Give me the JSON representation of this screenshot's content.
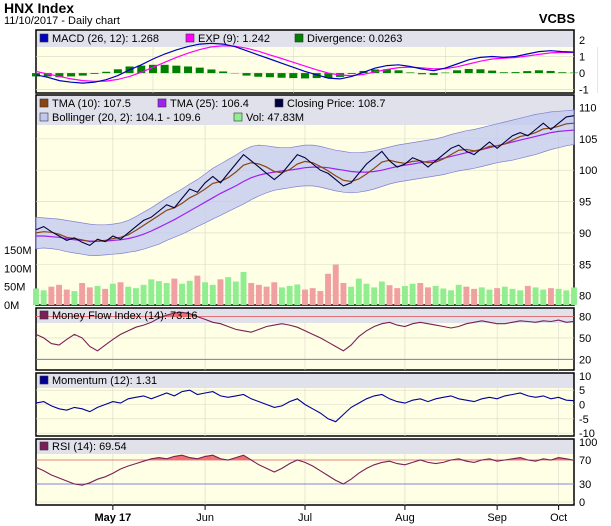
{
  "header": {
    "title": "HNX Index",
    "subtitle": "11/10/2017 - Daily chart",
    "brand": "VCBS"
  },
  "colors": {
    "background_panel": "#ffffe6",
    "label_band": "#c8c8f0",
    "tma10": "#8b4513",
    "tma25": "#a020f0",
    "closing": "#000040",
    "bollinger_fill": "#c0c8f0",
    "bollinger_line": "#8080d0",
    "volume_up": "#90ee90",
    "volume_down": "#f0a0a0",
    "macd": "#0000c0",
    "exp": "#ff00ff",
    "divergence": "#008000",
    "mfi": "#7a1f5a",
    "momentum": "#000099",
    "rsi": "#7a1f5a",
    "overbought_fill": "#f07070",
    "ref_red": "#e06060",
    "ref_blue": "#6060e0"
  },
  "chart_data": [
    {
      "type": "line",
      "panel": "macd",
      "legend": [
        {
          "text": "MACD (26, 12): 1.268",
          "color": "#0000c0"
        },
        {
          "text": "EXP (9): 1.242",
          "color": "#ff00ff"
        },
        {
          "text": "Divergence: 0.0263",
          "color": "#008000"
        }
      ],
      "yticks": [
        2,
        1,
        0,
        -1
      ],
      "ylim": [
        -1.2,
        2.6
      ],
      "series": [
        {
          "name": "MACD (26, 12)",
          "values": [
            -0.1,
            -0.25,
            -0.45,
            -0.55,
            -0.6,
            -0.55,
            -0.4,
            -0.15,
            0.2,
            0.5,
            0.85,
            1.15,
            1.4,
            1.6,
            1.75,
            1.8,
            1.75,
            1.6,
            1.35,
            1.1,
            0.85,
            0.6,
            0.35,
            0.1,
            -0.1,
            -0.3,
            -0.35,
            -0.2,
            0.05,
            0.3,
            0.45,
            0.5,
            0.4,
            0.25,
            0.15,
            0.3,
            0.55,
            0.8,
            0.95,
            1.0,
            0.95,
            1.0,
            1.15,
            1.3,
            1.35,
            1.3,
            1.27
          ]
        },
        {
          "name": "EXP (9)",
          "values": [
            0.1,
            -0.05,
            -0.2,
            -0.35,
            -0.45,
            -0.5,
            -0.48,
            -0.38,
            -0.2,
            0.05,
            0.35,
            0.65,
            0.95,
            1.2,
            1.42,
            1.58,
            1.65,
            1.62,
            1.5,
            1.32,
            1.1,
            0.88,
            0.65,
            0.42,
            0.2,
            0.0,
            -0.12,
            -0.15,
            -0.08,
            0.08,
            0.22,
            0.33,
            0.36,
            0.32,
            0.26,
            0.27,
            0.38,
            0.55,
            0.72,
            0.85,
            0.9,
            0.94,
            1.03,
            1.13,
            1.22,
            1.25,
            1.24
          ]
        },
        {
          "name": "Divergence",
          "values": [
            -0.2,
            -0.2,
            -0.25,
            -0.2,
            -0.15,
            -0.05,
            0.08,
            0.23,
            0.4,
            0.45,
            0.5,
            0.5,
            0.45,
            0.4,
            0.33,
            0.22,
            0.1,
            -0.02,
            -0.15,
            -0.22,
            -0.25,
            -0.28,
            -0.3,
            -0.32,
            -0.3,
            -0.3,
            -0.23,
            -0.05,
            0.13,
            0.22,
            0.23,
            0.17,
            0.04,
            -0.07,
            -0.11,
            0.03,
            0.17,
            0.25,
            0.23,
            0.15,
            0.05,
            0.06,
            0.12,
            0.17,
            0.13,
            0.05,
            0.03
          ]
        }
      ]
    },
    {
      "type": "line",
      "panel": "price",
      "legend": [
        {
          "text": "TMA (10): 107.5",
          "color": "#8b4513"
        },
        {
          "text": "TMA (25): 106.4",
          "color": "#a020f0"
        },
        {
          "text": "Closing Price: 108.7",
          "color": "#000040"
        },
        {
          "text": "Bollinger (20, 2): 104.1 - 109.6",
          "color": "#c0c8f0"
        },
        {
          "text": "Vol: 47.83M",
          "color": "#90ee90"
        }
      ],
      "yticks": [
        110,
        105,
        100,
        95,
        90,
        85,
        80
      ],
      "ylim": [
        78.5,
        112
      ],
      "volume_ticks": [
        "150M",
        "100M",
        "50M",
        "0M"
      ],
      "volume_max": 150,
      "series": [
        {
          "name": "Closing Price",
          "values": [
            90.5,
            91.0,
            90.2,
            89.5,
            88.8,
            89.2,
            88.5,
            88.0,
            89.0,
            88.6,
            89.5,
            89.0,
            90.0,
            91.0,
            92.0,
            92.5,
            93.5,
            94.5,
            94.0,
            95.5,
            97.0,
            96.5,
            98.0,
            99.0,
            98.0,
            99.5,
            101.0,
            102.5,
            101.5,
            100.5,
            99.5,
            98.5,
            99.5,
            101.0,
            102.5,
            102.0,
            101.0,
            100.0,
            99.5,
            98.5,
            97.5,
            98.0,
            99.5,
            101.0,
            102.0,
            103.0,
            101.5,
            100.5,
            101.0,
            102.0,
            101.5,
            100.5,
            101.5,
            102.5,
            103.5,
            104.0,
            103.0,
            102.5,
            103.5,
            104.5,
            103.5,
            104.5,
            105.5,
            106.0,
            105.5,
            106.5,
            107.5,
            106.5,
            107.5,
            108.5,
            108.7
          ]
        },
        {
          "name": "TMA (10)",
          "values": [
            90.0,
            90.2,
            90.1,
            89.8,
            89.3,
            89.1,
            88.9,
            88.6,
            88.7,
            88.8,
            89.1,
            89.3,
            89.7,
            90.4,
            91.2,
            92.0,
            92.8,
            93.6,
            94.0,
            94.7,
            95.6,
            96.2,
            97.0,
            97.9,
            98.2,
            98.8,
            99.7,
            100.8,
            101.2,
            101.0,
            100.5,
            99.8,
            99.6,
            100.1,
            101.0,
            101.4,
            101.2,
            100.6,
            99.9,
            99.1,
            98.4,
            98.2,
            98.6,
            99.4,
            100.3,
            101.3,
            101.6,
            101.3,
            101.1,
            101.4,
            101.5,
            101.2,
            101.3,
            101.8,
            102.5,
            103.2,
            103.3,
            103.1,
            103.3,
            103.8,
            103.9,
            104.2,
            104.8,
            105.4,
            105.6,
            106.0,
            106.6,
            106.7,
            107.0,
            107.4,
            107.5
          ]
        },
        {
          "name": "TMA (25)",
          "values": [
            89.5,
            89.5,
            89.4,
            89.3,
            89.1,
            88.9,
            88.8,
            88.7,
            88.7,
            88.7,
            88.8,
            88.9,
            89.1,
            89.4,
            89.8,
            90.3,
            90.9,
            91.5,
            92.1,
            92.8,
            93.5,
            94.2,
            94.9,
            95.6,
            96.3,
            96.9,
            97.5,
            98.2,
            98.8,
            99.2,
            99.5,
            99.7,
            99.9,
            100.0,
            100.2,
            100.4,
            100.5,
            100.5,
            100.4,
            100.2,
            100.0,
            99.8,
            99.7,
            99.7,
            99.8,
            100.0,
            100.3,
            100.6,
            100.8,
            101.0,
            101.2,
            101.4,
            101.6,
            101.9,
            102.2,
            102.5,
            102.8,
            103.0,
            103.3,
            103.6,
            103.9,
            104.2,
            104.5,
            104.8,
            105.1,
            105.4,
            105.7,
            106.0,
            106.2,
            106.3,
            106.4
          ]
        },
        {
          "name": "Bollinger upper",
          "values": [
            92.5,
            92.4,
            92.3,
            92.2,
            92.0,
            91.8,
            91.6,
            91.4,
            91.3,
            91.3,
            91.4,
            91.6,
            92.0,
            92.6,
            93.3,
            94.0,
            94.8,
            95.6,
            96.3,
            97.0,
            97.8,
            98.5,
            99.4,
            100.3,
            101.0,
            101.7,
            102.4,
            103.2,
            103.8,
            104.0,
            103.9,
            103.7,
            103.6,
            103.6,
            103.8,
            104.0,
            104.0,
            103.8,
            103.5,
            103.2,
            103.0,
            102.8,
            102.8,
            102.9,
            103.1,
            103.4,
            103.7,
            104.0,
            104.2,
            104.4,
            104.6,
            104.8,
            105.0,
            105.3,
            105.7,
            106.0,
            106.3,
            106.5,
            106.8,
            107.1,
            107.4,
            107.7,
            108.0,
            108.3,
            108.6,
            108.9,
            109.1,
            109.3,
            109.4,
            109.5,
            109.6
          ]
        },
        {
          "name": "Bollinger lower",
          "values": [
            87.5,
            87.6,
            87.5,
            87.3,
            87.0,
            86.8,
            86.6,
            86.4,
            86.4,
            86.5,
            86.6,
            86.7,
            86.9,
            87.1,
            87.4,
            87.8,
            88.2,
            88.8,
            89.3,
            89.8,
            90.4,
            91.0,
            91.6,
            92.2,
            92.8,
            93.4,
            94.0,
            94.6,
            95.3,
            95.9,
            96.4,
            96.8,
            97.0,
            97.2,
            97.4,
            97.5,
            97.5,
            97.3,
            97.0,
            96.7,
            96.5,
            96.4,
            96.5,
            96.7,
            97.0,
            97.4,
            97.8,
            98.1,
            98.3,
            98.5,
            98.7,
            98.9,
            99.1,
            99.3,
            99.6,
            99.9,
            100.1,
            100.3,
            100.6,
            100.9,
            101.2,
            101.4,
            101.6,
            101.9,
            102.2,
            102.5,
            102.9,
            103.3,
            103.6,
            103.9,
            104.1
          ]
        },
        {
          "name": "Vol",
          "values": [
            45,
            40,
            50,
            55,
            42,
            38,
            60,
            48,
            52,
            44,
            58,
            62,
            50,
            46,
            55,
            70,
            65,
            60,
            72,
            58,
            66,
            80,
            62,
            55,
            70,
            76,
            64,
            90,
            60,
            55,
            50,
            62,
            48,
            52,
            56,
            42,
            46,
            38,
            85,
            110,
            60,
            50,
            72,
            58,
            48,
            64,
            54,
            46,
            52,
            58,
            60,
            48,
            52,
            45,
            40,
            55,
            50,
            44,
            48,
            42,
            46,
            50,
            44,
            40,
            52,
            48,
            42,
            46,
            44,
            40,
            47.83
          ]
        },
        {
          "name": "Vol up-day flags",
          "values": [
            1,
            1,
            0,
            0,
            0,
            1,
            0,
            0,
            1,
            0,
            1,
            0,
            1,
            1,
            1,
            1,
            1,
            1,
            0,
            1,
            1,
            0,
            1,
            1,
            0,
            1,
            1,
            1,
            0,
            0,
            0,
            0,
            1,
            1,
            1,
            0,
            0,
            0,
            0,
            0,
            0,
            1,
            1,
            1,
            1,
            1,
            0,
            0,
            1,
            1,
            0,
            0,
            1,
            1,
            1,
            1,
            0,
            0,
            1,
            1,
            0,
            1,
            1,
            1,
            0,
            1,
            1,
            0,
            1,
            1,
            1
          ]
        }
      ]
    },
    {
      "type": "line",
      "panel": "mfi",
      "legend": [
        {
          "text": "Money Flow Index (14): 73.16",
          "color": "#7a1f5a"
        }
      ],
      "yticks": [
        80,
        50,
        20
      ],
      "ylim": [
        5,
        92
      ],
      "ref_lines": [
        80,
        20
      ],
      "series": [
        {
          "name": "Money Flow Index (14)",
          "values": [
            55,
            50,
            42,
            40,
            48,
            55,
            50,
            38,
            32,
            40,
            48,
            55,
            60,
            65,
            68,
            72,
            78,
            82,
            85,
            86,
            84,
            80,
            76,
            72,
            70,
            66,
            62,
            60,
            58,
            62,
            66,
            68,
            70,
            68,
            65,
            60,
            55,
            50,
            44,
            38,
            32,
            40,
            52,
            60,
            66,
            70,
            72,
            68,
            66,
            70,
            72,
            70,
            68,
            66,
            64,
            66,
            70,
            72,
            74,
            72,
            70,
            70,
            72,
            74,
            73,
            72,
            74,
            73,
            75,
            72,
            73.16
          ]
        }
      ]
    },
    {
      "type": "line",
      "panel": "momentum",
      "legend": [
        {
          "text": "Momentum (12): 1.31",
          "color": "#000099"
        }
      ],
      "yticks": [
        10,
        5,
        0,
        -5,
        -10
      ],
      "ylim": [
        -11,
        11
      ],
      "series": [
        {
          "name": "Momentum (12)",
          "values": [
            0.5,
            1.0,
            -0.5,
            -1.5,
            -2.0,
            -1.0,
            -1.5,
            -2.5,
            -1.0,
            0.0,
            1.0,
            0.5,
            2.0,
            2.5,
            3.0,
            2.0,
            3.0,
            4.0,
            3.0,
            4.5,
            5.0,
            3.5,
            4.0,
            4.5,
            3.0,
            2.5,
            3.0,
            3.5,
            2.0,
            1.0,
            0.0,
            -1.0,
            -0.5,
            1.0,
            2.0,
            0.0,
            -1.5,
            -3.0,
            -5.0,
            -6.0,
            -3.5,
            -1.0,
            0.5,
            2.0,
            3.0,
            3.5,
            2.0,
            1.0,
            0.5,
            1.5,
            2.0,
            1.0,
            2.0,
            2.5,
            3.0,
            2.0,
            1.5,
            1.0,
            2.0,
            2.5,
            2.0,
            3.0,
            3.5,
            4.0,
            3.0,
            2.5,
            3.0,
            2.0,
            2.5,
            1.5,
            1.31
          ]
        }
      ]
    },
    {
      "type": "line",
      "panel": "rsi",
      "legend": [
        {
          "text": "RSI (14): 69.54",
          "color": "#7a1f5a"
        }
      ],
      "yticks": [
        100,
        70,
        30,
        0
      ],
      "ylim": [
        -5,
        105
      ],
      "ref_lines": [
        70,
        30
      ],
      "series": [
        {
          "name": "RSI (14)",
          "values": [
            58,
            52,
            45,
            40,
            35,
            30,
            28,
            32,
            38,
            42,
            48,
            55,
            60,
            64,
            68,
            72,
            74,
            72,
            76,
            78,
            74,
            72,
            76,
            78,
            72,
            70,
            74,
            78,
            70,
            62,
            56,
            50,
            56,
            64,
            70,
            66,
            60,
            52,
            44,
            36,
            30,
            38,
            48,
            56,
            62,
            66,
            68,
            64,
            62,
            66,
            70,
            66,
            64,
            66,
            70,
            72,
            68,
            66,
            70,
            72,
            68,
            70,
            72,
            74,
            70,
            68,
            72,
            70,
            74,
            72,
            69.54
          ]
        }
      ]
    }
  ],
  "x_axis": {
    "labels": [
      {
        "text": "May 17",
        "bold": true,
        "index": 10
      },
      {
        "text": "Jun",
        "bold": false,
        "index": 22
      },
      {
        "text": "Jul",
        "bold": false,
        "index": 35
      },
      {
        "text": "Aug",
        "bold": false,
        "index": 48
      },
      {
        "text": "Sep",
        "bold": false,
        "index": 60
      },
      {
        "text": "Oct",
        "bold": false,
        "index": 68
      }
    ]
  }
}
